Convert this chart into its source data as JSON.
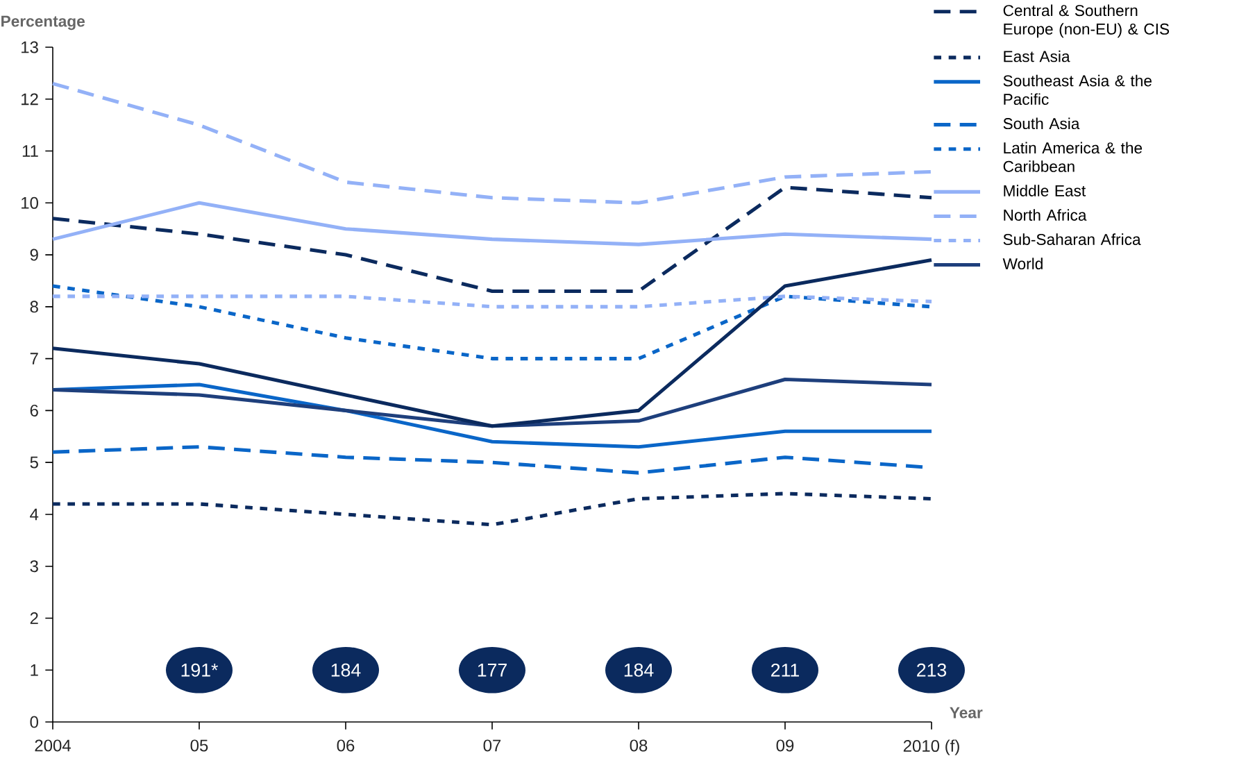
{
  "chart_data": {
    "type": "line",
    "ylabel": "Percentage",
    "xlabel": "Year",
    "categories": [
      "2004",
      "05",
      "06",
      "07",
      "08",
      "09",
      "2010 (f)"
    ],
    "ylim": [
      0,
      13
    ],
    "yticks": [
      0,
      1,
      2,
      3,
      4,
      5,
      6,
      7,
      8,
      9,
      10,
      11,
      12,
      13
    ],
    "legend": "top right",
    "grid": false,
    "marker": "none",
    "series": [
      {
        "name": "Central & Southern Europe (non-EU) & CIS",
        "color": "#0b2a5e",
        "line_style": "dashed",
        "values": [
          9.7,
          9.4,
          9.0,
          8.3,
          8.3,
          10.3,
          10.1
        ]
      },
      {
        "name": "East Asia",
        "color": "#0b2a5e",
        "line_style": "dotted",
        "values": [
          4.2,
          4.2,
          4.0,
          3.8,
          4.3,
          4.4,
          4.3
        ]
      },
      {
        "name": "Southeast Asia & the Pacific",
        "color": "#0a66c8",
        "line_style": "solid",
        "values": [
          6.4,
          6.5,
          6.0,
          5.4,
          5.3,
          5.6,
          5.6
        ]
      },
      {
        "name": "South Asia",
        "color": "#0a66c8",
        "line_style": "dashed",
        "values": [
          5.2,
          5.3,
          5.1,
          5.0,
          4.8,
          5.1,
          4.9
        ]
      },
      {
        "name": "Latin America & the Caribbean",
        "color": "#0a66c8",
        "line_style": "dotted",
        "values": [
          8.4,
          8.0,
          7.4,
          7.0,
          7.0,
          8.2,
          8.0
        ]
      },
      {
        "name": "Middle East",
        "color": "#93b1f7",
        "line_style": "solid",
        "values": [
          9.3,
          10.0,
          9.5,
          9.3,
          9.2,
          9.4,
          9.3
        ]
      },
      {
        "name": "North Africa",
        "color": "#93b1f7",
        "line_style": "dashed",
        "values": [
          12.3,
          11.5,
          10.4,
          10.1,
          10.0,
          10.5,
          10.6
        ]
      },
      {
        "name": "Sub-Saharan Africa",
        "color": "#93b1f7",
        "line_style": "dotted",
        "values": [
          8.2,
          8.2,
          8.2,
          8.0,
          8.0,
          8.2,
          8.1
        ]
      },
      {
        "name": "World",
        "color": "#1e3f7c",
        "line_style": "solid",
        "values": [
          6.4,
          6.3,
          6.0,
          5.7,
          5.8,
          6.6,
          6.5
        ]
      },
      {
        "color": "#0b2a5e",
        "line_style": "solid",
        "values": [
          7.2,
          6.9,
          6.3,
          5.7,
          6.0,
          8.4,
          8.9
        ]
      }
    ],
    "annotations": [
      "191*",
      "184",
      "177",
      "184",
      "211",
      "213"
    ]
  }
}
